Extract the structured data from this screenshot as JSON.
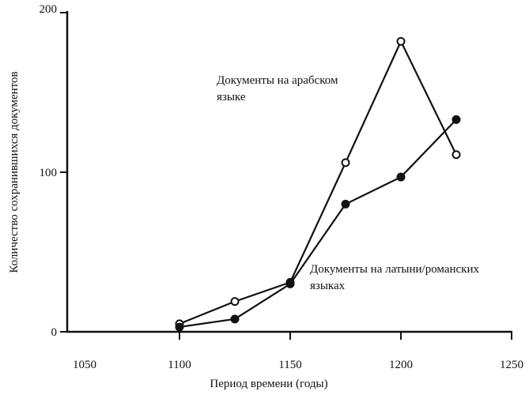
{
  "chart_data": {
    "type": "line",
    "title": "",
    "xlabel": "Период времени (годы)",
    "ylabel": "Количество сохранившихся документов",
    "xlim": [
      1050,
      1250
    ],
    "ylim": [
      0,
      200
    ],
    "xticks": [
      "1050",
      "1100",
      "1150",
      "1200",
      "1250"
    ],
    "yticks": [
      "0",
      "100",
      "200"
    ],
    "grid": false,
    "series": [
      {
        "name": "Документы на арабском языке",
        "label_lines": [
          "Документы на арабском",
          "языке"
        ],
        "marker": "open-circle",
        "x": [
          1100,
          1125,
          1150,
          1175,
          1200,
          1225
        ],
        "y": [
          5,
          19,
          31,
          106,
          182,
          111
        ]
      },
      {
        "name": "Документы на латыни/романских языках",
        "label_lines": [
          "Документы на латыни/романских",
          "языках"
        ],
        "marker": "filled-circle",
        "x": [
          1100,
          1125,
          1150,
          1175,
          1200,
          1225
        ],
        "y": [
          3,
          8,
          30,
          80,
          97,
          133
        ]
      }
    ],
    "colors": {
      "line": "#111111",
      "background": "#ffffff"
    }
  }
}
